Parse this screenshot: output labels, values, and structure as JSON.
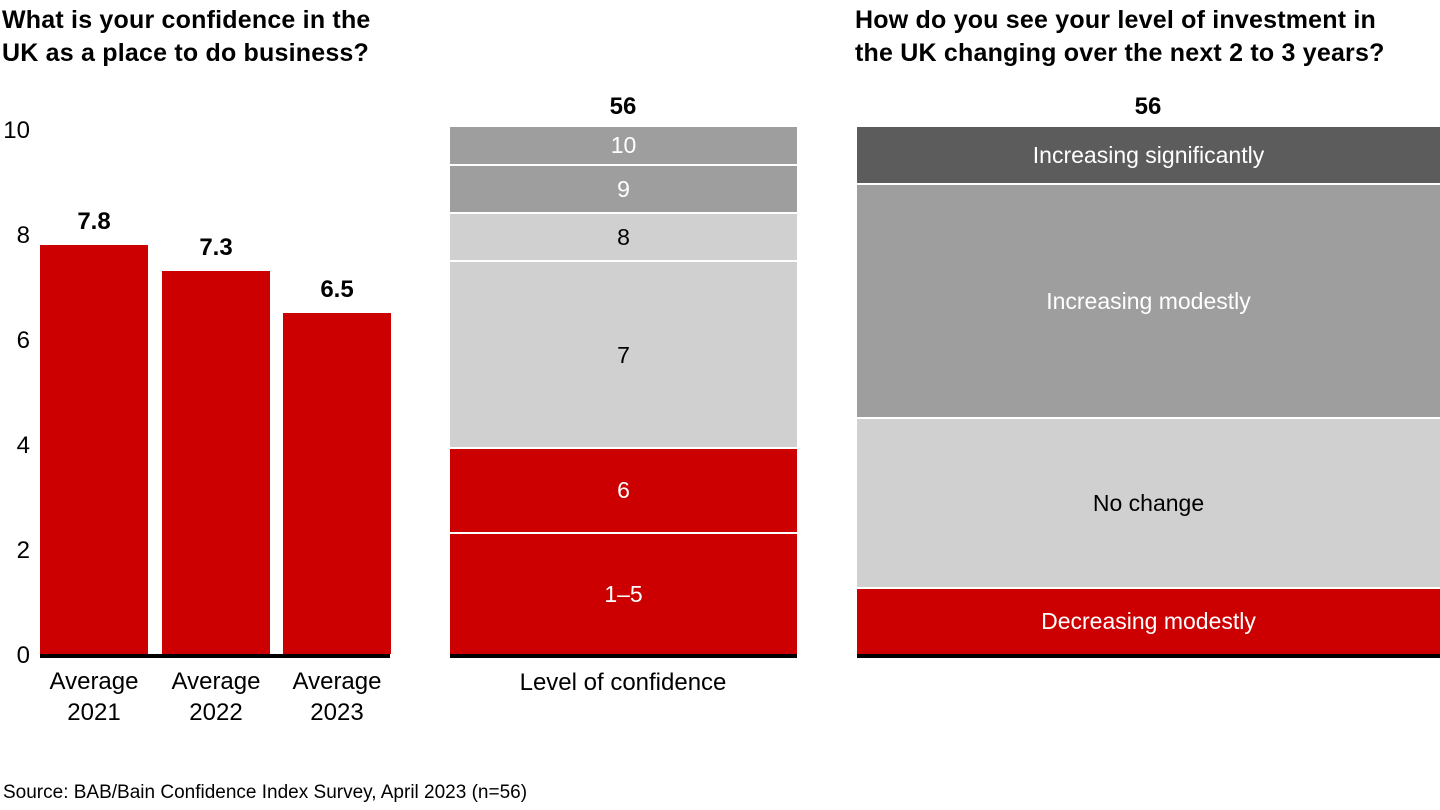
{
  "source_note": "Source: BAB/Bain Confidence Index Survey, April 2023 (n=56)",
  "colors": {
    "red": "#CC0000",
    "dark_gray": "#5C5C5C",
    "mid_gray": "#9E9E9E",
    "light_gray": "#D0D0D0",
    "axis": "#000000",
    "background": "#FFFFFF"
  },
  "chart_data": [
    {
      "type": "bar",
      "title": "What is your confidence in the\nUK as a place to do business?",
      "categories": [
        "Average\n2021",
        "Average\n2022",
        "Average\n2023"
      ],
      "values": [
        7.8,
        7.3,
        6.5
      ],
      "value_labels": [
        "7.8",
        "7.3",
        "6.5"
      ],
      "bar_color": "#CC0000",
      "ylim": [
        0,
        10
      ],
      "yticks": [
        0,
        2,
        4,
        6,
        8,
        10
      ],
      "grid": false,
      "legend": false
    },
    {
      "type": "bar",
      "subtype": "stacked-single-column",
      "title": "",
      "total_label": "56",
      "xlabel": "Level of confidence",
      "note": "segment values are respondent counts estimated from bar proportions; only the total 56 is printed on the chart",
      "segments_top_to_bottom": [
        {
          "label": "10",
          "value": 4,
          "color": "#9E9E9E",
          "text_color": "#FFFFFF"
        },
        {
          "label": "9",
          "value": 5,
          "color": "#9E9E9E",
          "text_color": "#FFFFFF"
        },
        {
          "label": "8",
          "value": 5,
          "color": "#D0D0D0",
          "text_color": "#000000"
        },
        {
          "label": "7",
          "value": 20,
          "color": "#D0D0D0",
          "text_color": "#000000"
        },
        {
          "label": "6",
          "value": 9,
          "color": "#CC0000",
          "text_color": "#FFFFFF"
        },
        {
          "label": "1–5",
          "value": 13,
          "color": "#CC0000",
          "text_color": "#FFFFFF"
        }
      ]
    },
    {
      "type": "bar",
      "subtype": "stacked-single-column",
      "title": "How do you see your level of investment in\nthe UK changing over the next 2 to 3 years?",
      "total_label": "56",
      "xlabel": "",
      "note": "segment values are respondent counts estimated from bar proportions; only the total 56 is printed on the chart",
      "segments_top_to_bottom": [
        {
          "label": "Increasing significantly",
          "value": 6,
          "color": "#5C5C5C",
          "text_color": "#FFFFFF"
        },
        {
          "label": "Increasing modestly",
          "value": 25,
          "color": "#9E9E9E",
          "text_color": "#FFFFFF"
        },
        {
          "label": "No change",
          "value": 18,
          "color": "#D0D0D0",
          "text_color": "#000000"
        },
        {
          "label": "Decreasing modestly",
          "value": 7,
          "color": "#CC0000",
          "text_color": "#FFFFFF"
        }
      ]
    }
  ]
}
